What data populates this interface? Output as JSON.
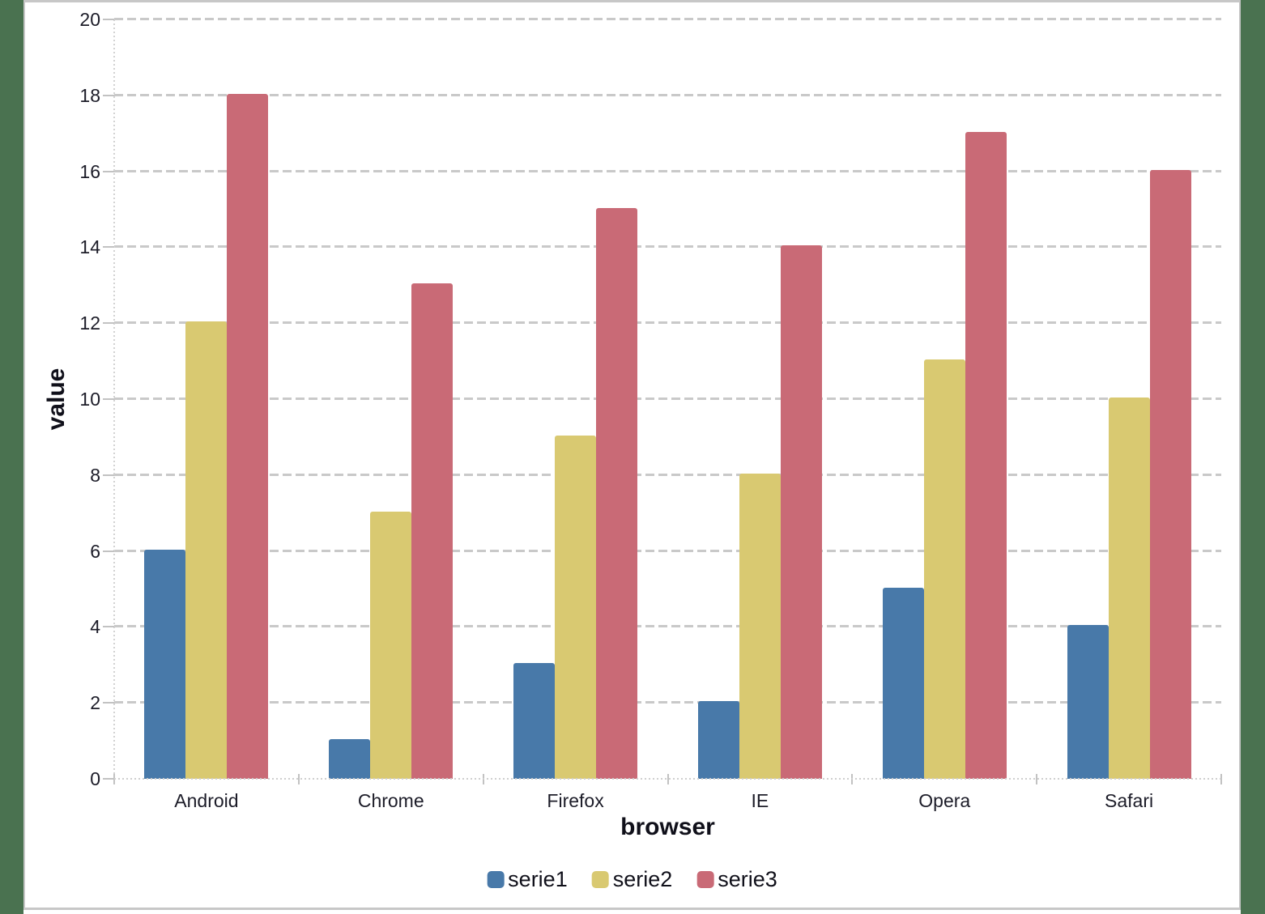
{
  "chart_data": {
    "type": "bar",
    "title": "",
    "xlabel": "browser",
    "ylabel": "value",
    "categories": [
      "Android",
      "Chrome",
      "Firefox",
      "IE",
      "Opera",
      "Safari"
    ],
    "series": [
      {
        "name": "serie1",
        "color": "#4879A9",
        "values": [
          6,
          1,
          3,
          2,
          5,
          4
        ]
      },
      {
        "name": "serie2",
        "color": "#D9C971",
        "values": [
          12,
          7,
          9,
          8,
          11,
          10
        ]
      },
      {
        "name": "serie3",
        "color": "#C96A76",
        "values": [
          18,
          13,
          15,
          14,
          17,
          16
        ]
      }
    ],
    "ylim": [
      0,
      20
    ],
    "yticks": [
      0,
      2,
      4,
      6,
      8,
      10,
      12,
      14,
      16,
      18,
      20
    ],
    "grid": "horizontal-dashed",
    "legend_position": "bottom-center"
  },
  "colors": {
    "desktop_background": "#4A7250",
    "panel_background": "#FFFFFF",
    "panel_border": "#C7C7C7",
    "gridline": "#C9C9C9",
    "axis_text": "#1C1C28",
    "title_text": "#10101A"
  }
}
